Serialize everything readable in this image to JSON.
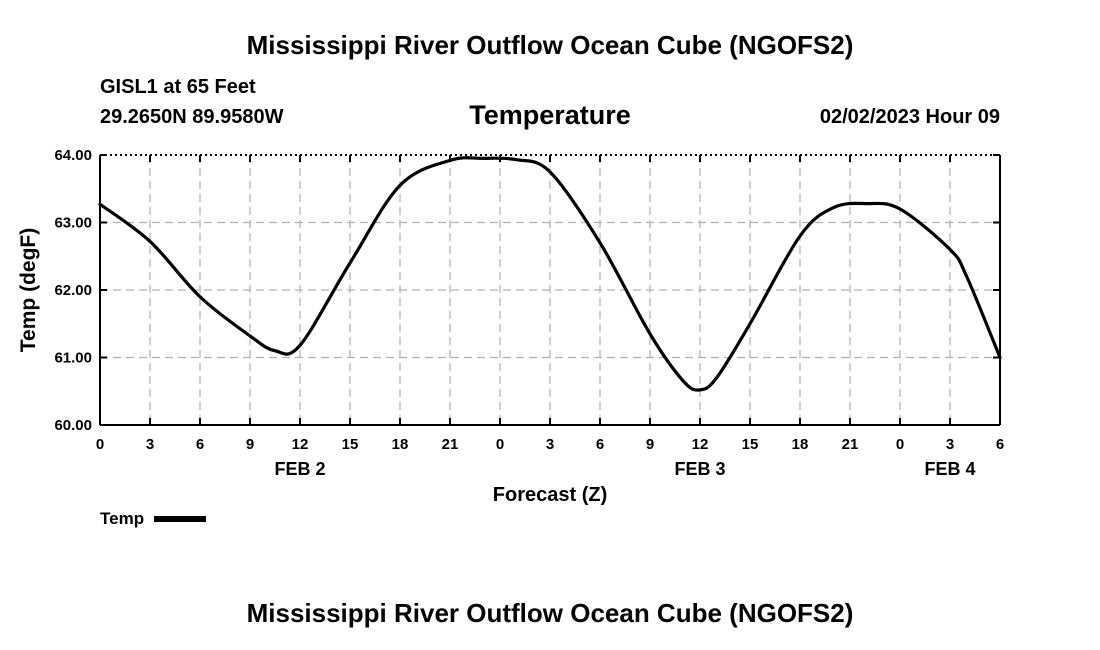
{
  "header": {
    "title": "Mississippi River Outflow Ocean Cube (NGOFS2)",
    "station": "GISL1 at 65 Feet",
    "coordinates": "29.2650N  89.9580W",
    "subtitle": "Temperature",
    "timestamp": "02/02/2023 Hour 09"
  },
  "footer": {
    "title": "Mississippi River Outflow Ocean Cube (NGOFS2)"
  },
  "legend": {
    "label": "Temp",
    "color": "#000000"
  },
  "chart_data": {
    "type": "line",
    "title": "Temperature",
    "xlabel": "Forecast (Z)",
    "ylabel": "Temp (degF)",
    "xlim": [
      0,
      54
    ],
    "ylim": [
      60.0,
      64.0
    ],
    "grid": true,
    "x_ticks": [
      0,
      3,
      6,
      9,
      12,
      15,
      18,
      21,
      24,
      27,
      30,
      33,
      36,
      39,
      42,
      45,
      48,
      51,
      54
    ],
    "x_tick_labels": [
      "0",
      "3",
      "6",
      "9",
      "12",
      "15",
      "18",
      "21",
      "0",
      "3",
      "6",
      "9",
      "12",
      "15",
      "18",
      "21",
      "0",
      "3",
      "6"
    ],
    "y_ticks": [
      60.0,
      61.0,
      62.0,
      63.0,
      64.0
    ],
    "y_tick_labels": [
      "60.00",
      "61.00",
      "62.00",
      "63.00",
      "64.00"
    ],
    "date_labels": [
      {
        "x": 12,
        "label": "FEB 2"
      },
      {
        "x": 36,
        "label": "FEB 3"
      },
      {
        "x": 51,
        "label": "FEB 4"
      }
    ],
    "series": [
      {
        "name": "Temp",
        "color": "#000000",
        "x": [
          0,
          3,
          6,
          9,
          10.5,
          12,
          15,
          18,
          21,
          23,
          25,
          27,
          30,
          33,
          35,
          36,
          37,
          39,
          42,
          44,
          46,
          48,
          51,
          52,
          54
        ],
        "values": [
          63.27,
          62.72,
          61.9,
          61.32,
          61.1,
          61.18,
          62.4,
          63.55,
          63.92,
          63.95,
          63.93,
          63.75,
          62.7,
          61.35,
          60.65,
          60.52,
          60.7,
          61.5,
          62.8,
          63.22,
          63.28,
          63.2,
          62.6,
          62.2,
          61.0
        ]
      }
    ]
  }
}
